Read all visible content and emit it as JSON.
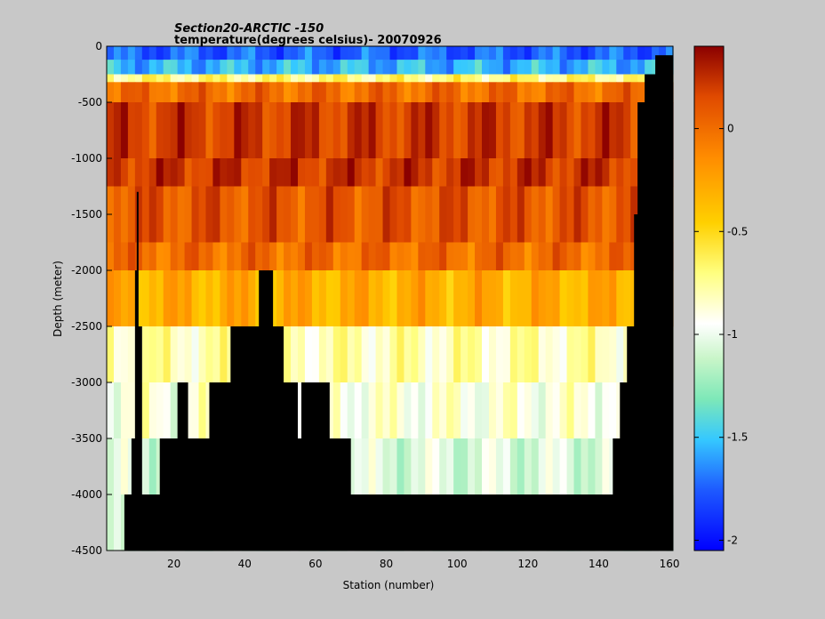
{
  "chart_data": {
    "type": "heatmap",
    "title": "Section20-ARCTIC  -150",
    "subtitle": "temperature(degrees  celsius)- 20070926",
    "xlabel": "Station (number)",
    "ylabel": "Depth (meter)",
    "xlim": [
      1,
      161
    ],
    "ylim": [
      -4500,
      0
    ],
    "xticks": [
      20,
      40,
      60,
      80,
      100,
      120,
      140,
      160
    ],
    "yticks": [
      0,
      -500,
      -1000,
      -1500,
      -2000,
      -2500,
      -3000,
      -3500,
      -4000,
      -4500
    ],
    "colorbar": {
      "range": [
        -2.05,
        0.4
      ],
      "ticks": [
        0,
        -0.5,
        -1,
        -1.5,
        -2
      ],
      "colormap": "jet"
    },
    "depth_layers": [
      {
        "top": 0,
        "bottom": -120,
        "temp": -1.75
      },
      {
        "top": -120,
        "bottom": -250,
        "temp": -1.55
      },
      {
        "top": -250,
        "bottom": -320,
        "temp": -0.7
      },
      {
        "top": -320,
        "bottom": -500,
        "temp": 0.0
      },
      {
        "top": -500,
        "bottom": -1000,
        "temp": 0.2
      },
      {
        "top": -1000,
        "bottom": -1250,
        "temp": 0.22
      },
      {
        "top": -1250,
        "bottom": -1750,
        "temp": 0.1
      },
      {
        "top": -1750,
        "bottom": -2000,
        "temp": 0.0
      },
      {
        "top": -2000,
        "bottom": -2500,
        "temp": -0.3
      },
      {
        "top": -2500,
        "bottom": -3000,
        "temp": -0.8
      },
      {
        "top": -3000,
        "bottom": -3500,
        "temp": -0.9
      },
      {
        "top": -3500,
        "bottom": -4000,
        "temp": -1.05
      },
      {
        "top": -4000,
        "bottom": -4500,
        "temp": -1.15
      }
    ],
    "seafloor": [
      {
        "station": 1,
        "depth": -4500
      },
      {
        "station": 5,
        "depth": -4500
      },
      {
        "station": 6,
        "depth": -4000
      },
      {
        "station": 8,
        "depth": -3500
      },
      {
        "station": 9,
        "depth": -2000
      },
      {
        "station": 9.5,
        "depth": -1300
      },
      {
        "station": 10,
        "depth": -2500
      },
      {
        "station": 11,
        "depth": -4000
      },
      {
        "station": 16,
        "depth": -3500
      },
      {
        "station": 21,
        "depth": -3000
      },
      {
        "station": 24,
        "depth": -3500
      },
      {
        "station": 30,
        "depth": -3000
      },
      {
        "station": 36,
        "depth": -2500
      },
      {
        "station": 44,
        "depth": -2000
      },
      {
        "station": 48,
        "depth": -2500
      },
      {
        "station": 51,
        "depth": -3000
      },
      {
        "station": 55,
        "depth": -3500
      },
      {
        "station": 56,
        "depth": -3000
      },
      {
        "station": 61,
        "depth": -3000
      },
      {
        "station": 64,
        "depth": -3500
      },
      {
        "station": 70,
        "depth": -4000
      },
      {
        "station": 143,
        "depth": -4000
      },
      {
        "station": 144,
        "depth": -3500
      },
      {
        "station": 146,
        "depth": -3000
      },
      {
        "station": 148,
        "depth": -2500
      },
      {
        "station": 150,
        "depth": -1500
      },
      {
        "station": 151,
        "depth": -500
      },
      {
        "station": 153,
        "depth": -250
      },
      {
        "station": 156,
        "depth": -80
      },
      {
        "station": 161,
        "depth": -30
      }
    ]
  }
}
